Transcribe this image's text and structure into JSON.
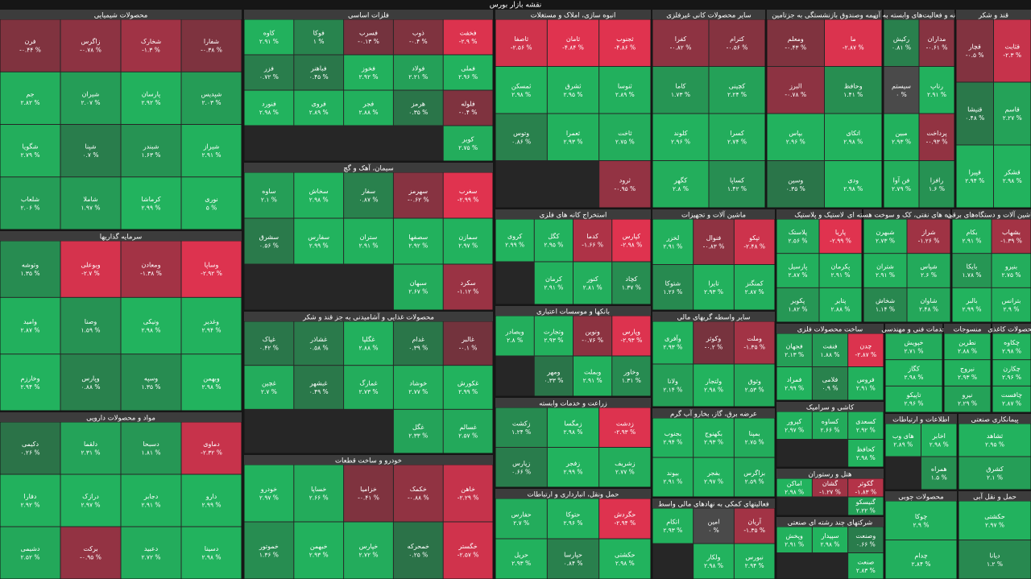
{
  "chart_data": {
    "type": "treemap",
    "title": "نقشه بازار بورس",
    "colors": {
      "up": "#22b35e",
      "down": "#e0334f",
      "flat": "#4a4a4a"
    },
    "sectors": [
      {
        "name": "محصولات شیمیایی",
        "names": [
          "شفارا",
          "شخارک",
          "زاگرس",
          "فرن",
          "شپدیس",
          "پارسان",
          "شیران",
          "جم",
          "شیراز",
          "شبندر",
          "شپنا",
          "شگویا",
          "نوری",
          "کرماشا",
          "شاملا",
          "شلعاب"
        ],
        "values": [
          -0.38,
          -1.3,
          -0.78,
          -0.44,
          2.03,
          2.92,
          2.07,
          2.82,
          2.91,
          1.63,
          0.7,
          2.79,
          5,
          2.99,
          1.97,
          2.06
        ],
        "value_labels": [
          "-۰.۳۸ %",
          "-۱.۳ %",
          "-۰.۷۸ %",
          "-۰.۴۴ %",
          "۲.۰۳ %",
          "۲.۹۲ %",
          "۲.۰۷ %",
          "۲.۸۲ %",
          "۲.۹۱ %",
          "۱.۶۳ %",
          "۰.۷ %",
          "۲.۷۹ %",
          "۵ %",
          "۲.۹۹ %",
          "۱.۹۷ %",
          "۲.۰۶ %"
        ]
      },
      {
        "name": "فلزات اساسی",
        "names": [
          "فخفت",
          "ذوب",
          "فسرب",
          "فوکا",
          "کاوه",
          "فملی",
          "فولاد",
          "فخوز",
          "فباهنر",
          "فزر",
          "فلوله",
          "هرمز",
          "فجر",
          "فروی",
          "فنورد",
          "کویر"
        ],
        "values": [
          -2.9,
          -0.4,
          -0.13,
          1,
          2.91,
          2.96,
          2.21,
          2.92,
          0.45,
          0.72,
          -0.4,
          0.35,
          2.88,
          2.89,
          2.98,
          2.75
        ],
        "value_labels": [
          "-۲.۹ %",
          "-۰.۴ %",
          "-۰.۱۳ %",
          "۱ %",
          "۲.۹۱ %",
          "۲.۹۶ %",
          "۲.۲۱ %",
          "۲.۹۲ %",
          "۰.۴۵ %",
          "۰.۷۲ %",
          "-۰.۴ %",
          "۰.۳۵ %",
          "۲.۸۸ %",
          "۲.۸۹ %",
          "۲.۹۸ %",
          "۲.۷۵ %"
        ]
      },
      {
        "name": "انبوه سازی، املاک و مستغلات",
        "names": [
          "ثجنوب",
          "ثامان",
          "ثاصفا",
          "ثنوسا",
          "ثشرق",
          "ثمسکن",
          "ثاخت",
          "ثعمرا",
          "وتوس",
          "ثرود"
        ],
        "values": [
          -4.86,
          -4.84,
          -2.56,
          2.89,
          2.95,
          2.98,
          2.75,
          2.93,
          0.86,
          -0.95
        ],
        "value_labels": [
          "-۴.۸۶ %",
          "-۴.۸۴ %",
          "-۲.۵۶ %",
          "۲.۸۹ %",
          "۲.۹۵ %",
          "۲.۹۸ %",
          "۲.۷۵ %",
          "۲.۹۳ %",
          "۰.۸۶ %",
          "-۰.۹۵ %"
        ]
      },
      {
        "name": "سایر محصولات کانی غیرفلزی",
        "names": [
          "کترام",
          "کفرا",
          "کچینی",
          "کاما",
          "کسرا",
          "کلوند",
          "کساپا",
          "کگهر"
        ],
        "values": [
          -0.56,
          -0.82,
          2.24,
          1.73,
          2.74,
          2.96,
          1.42,
          2.8
        ],
        "value_labels": [
          "-۰.۵۶ %",
          "-۰.۸۲ %",
          "۲.۲۴ %",
          "۱.۷۳ %",
          "۲.۷۴ %",
          "۲.۹۶ %",
          "۱.۴۲ %",
          "۲.۸ %"
        ]
      },
      {
        "name": "بیمه وصندوق بازنشستگی به جزتامین",
        "names": [
          "ما",
          "ومعلم",
          "وحافظ",
          "البرز",
          "اتکای",
          "بپاس",
          "ودی",
          "وسین"
        ],
        "values": [
          -2.87,
          -0.43,
          1.41,
          -0.78,
          2.98,
          2.96,
          2.98,
          0.35
        ],
        "value_labels": [
          "-۲.۸۷ %",
          "-۰.۴۳ %",
          "۱.۴۱ %",
          "-۰.۷۸ %",
          "۲.۹۸ %",
          "۲.۹۶ %",
          "۲.۹۸ %",
          "۰.۳۵ %"
        ]
      },
      {
        "name": "رایانه و فعالیت‌های وابسته به آن",
        "names": [
          "مداران",
          "رکیش",
          "رتاپ",
          "سیستم",
          "پرداخت",
          "مبین",
          "رافزا",
          "فن آوا"
        ],
        "values": [
          -0.61,
          0.81,
          2.91,
          0,
          -0.93,
          2.93,
          1.6,
          2.79
        ],
        "value_labels": [
          "-۰.۶۱ %",
          "۰.۸۱ %",
          "۲.۹۱ %",
          "۰ %",
          "-۰.۹۳ %",
          "۲.۹۳ %",
          "۱.۶ %",
          "۲.۷۹ %"
        ]
      },
      {
        "name": "قند و شکر",
        "names": [
          "قثابت",
          "قچار",
          "قاسم",
          "قنیشا",
          "قشکر",
          "قپیرا"
        ],
        "values": [
          -2.3,
          -0.5,
          2.27,
          0.48,
          2.98,
          2.94
        ],
        "value_labels": [
          "-۲.۳ %",
          "-۰.۵ %",
          "۲.۲۷ %",
          "۰.۴۸ %",
          "۲.۹۸ %",
          "۲.۹۴ %"
        ]
      },
      {
        "name": "سرمایه گذاریها",
        "names": [
          "وساپا",
          "ومعادن",
          "وبوعلی",
          "وتوشه",
          "وغدیر",
          "ونیکی",
          "وصنا",
          "وامید",
          "وبهمن",
          "وسپه",
          "وپارس",
          "وخارزم"
        ],
        "values": [
          -2.92,
          -1.38,
          -2.7,
          1.35,
          2.94,
          2.98,
          1.59,
          2.87,
          2.98,
          1.35,
          0.88,
          2.94
        ],
        "value_labels": [
          "-۲.۹۲ %",
          "-۱.۳۸ %",
          "-۲.۷ %",
          "۱.۳۵ %",
          "۲.۹۴ %",
          "۲.۹۸ %",
          "۱.۵۹ %",
          "۲.۸۷ %",
          "۲.۹۸ %",
          "۱.۳۵ %",
          "۰.۸۸ %",
          "۲.۹۴ %"
        ]
      },
      {
        "name": "سیمان، آهک و گچ",
        "names": [
          "سغرب",
          "سهرمز",
          "سفار",
          "سخاش",
          "ساوه",
          "سمازن",
          "سصفها",
          "ستران",
          "سفارس",
          "سشرق",
          "سکرد",
          "سبهان"
        ],
        "values": [
          -2.99,
          -0.62,
          0.87,
          2.98,
          2.1,
          2.97,
          2.92,
          2.91,
          2.99,
          0.56,
          -1.12,
          2.67
        ],
        "value_labels": [
          "-۲.۹۹ %",
          "-۰.۶۲ %",
          "۰.۸۷ %",
          "۲.۹۸ %",
          "۲.۱ %",
          "۲.۹۷ %",
          "۲.۹۲ %",
          "۲.۹۱ %",
          "۲.۹۹ %",
          "۰.۵۶ %",
          "-۱.۱۲ %",
          "۲.۶۷ %"
        ]
      },
      {
        "name": "محصولات غذایی و آشامیدنی به جز قند و شکر",
        "names": [
          "غالبر",
          "غدام",
          "غگلپا",
          "غشاذر",
          "غپاک",
          "غکورش",
          "خوشاد",
          "غمارگ",
          "غبشهر",
          "غچین",
          "غسالم",
          "غگل"
        ],
        "values": [
          -0.1,
          0.39,
          2.88,
          0.58,
          0.42,
          2.99,
          2.77,
          2.73,
          0.49,
          2.7,
          2.57,
          2.33
        ],
        "value_labels": [
          "-۰.۱ %",
          "۰.۳۹ %",
          "۲.۸۸ %",
          "۰.۵۸ %",
          "۰.۴۲ %",
          "۲.۹۹ %",
          "۲.۷۷ %",
          "۲.۷۳ %",
          "۰.۴۹ %",
          "۲.۷ %",
          "۲.۵۷ %",
          "۲.۳۳ %"
        ]
      },
      {
        "name": "خودرو و ساخت قطعات",
        "names": [
          "خاهن",
          "خکمک",
          "خزامیا",
          "خساپا",
          "خودرو",
          "خگستر",
          "خمحرکه",
          "خپارس",
          "خبهمن",
          "خموتور"
        ],
        "values": [
          -2.29,
          -0.88,
          -0.41,
          2.66,
          2.97,
          -2.57,
          0.25,
          2.72,
          2.93,
          1.36
        ],
        "value_labels": [
          "-۲.۲۹ %",
          "-۰.۸۸ %",
          "-۰.۴۱ %",
          "۲.۶۶ %",
          "۲.۹۷ %",
          "-۲.۵۷ %",
          "۰.۲۵ %",
          "۲.۷۲ %",
          "۲.۹۳ %",
          "۱.۳۶ %"
        ]
      },
      {
        "name": "مواد و محصولات دارویی",
        "names": [
          "دماوی",
          "دسبحا",
          "دلقما",
          "دکیمی",
          "دارو",
          "دجابر",
          "درازک",
          "دفارا",
          "دسینا",
          "دعبید",
          "برکت",
          "دشیمی"
        ],
        "values": [
          -2.32,
          1.81,
          2.31,
          0.26,
          2.99,
          2.91,
          2.97,
          2.92,
          2.98,
          2.72,
          -0.95,
          2.52
        ],
        "value_labels": [
          "-۲.۳۲ %",
          "۱.۸۱ %",
          "۲.۳۱ %",
          "۰.۲۶ %",
          "۲.۹۹ %",
          "۲.۹۱ %",
          "۲.۹۷ %",
          "۲.۹۲ %",
          "۲.۹۸ %",
          "۲.۷۲ %",
          "-۰.۹۵ %",
          "۲.۵۲ %"
        ]
      },
      {
        "name": "استخراج کانه های فلزی",
        "names": [
          "کپارس",
          "کدما",
          "کگل",
          "کروی",
          "کچاد",
          "کنور",
          "کرمان"
        ],
        "values": [
          -2.98,
          -1.66,
          2.95,
          2.99,
          1.37,
          2.81,
          2.91
        ],
        "value_labels": [
          "-۲.۹۸ %",
          "-۱.۶۶ %",
          "۲.۹۵ %",
          "۲.۹۹ %",
          "۱.۳۷ %",
          "۲.۸۱ %",
          "۲.۹۱ %"
        ]
      },
      {
        "name": "بانکها و موسسات اعتباری",
        "names": [
          "وپارس",
          "ونوین",
          "وتجارت",
          "وبصادر",
          "وخاور",
          "وبملت",
          "ومهر"
        ],
        "values": [
          -2.93,
          -0.76,
          2.93,
          2.8,
          1.31,
          2.91,
          0.33
        ],
        "value_labels": [
          "-۲.۹۳ %",
          "-۰.۷۶ %",
          "۲.۹۳ %",
          "۲.۸ %",
          "۱.۳۱ %",
          "۲.۹۱ %",
          "۰.۳۳ %"
        ]
      },
      {
        "name": "زراعت و خدمات وابسته",
        "names": [
          "زدشت",
          "زمگسا",
          "زکشت",
          "زشریف",
          "زفجر",
          "زپارس"
        ],
        "values": [
          -2.93,
          2.98,
          1.24,
          2.77,
          2.99,
          0.66
        ],
        "value_labels": [
          "-۲.۹۳ %",
          "۲.۹۸ %",
          "۱.۲۴ %",
          "۲.۷۷ %",
          "۲.۹۹ %",
          "۰.۶۶ %"
        ]
      },
      {
        "name": "حمل ونقل، انبارداری و ارتباطات",
        "names": [
          "حگردش",
          "حتوکا",
          "حفارس",
          "حکشتی",
          "حپارسا",
          "حریل"
        ],
        "values": [
          -2.94,
          2.96,
          2.7,
          2.98,
          0.84,
          2.93
        ],
        "value_labels": [
          "-۲.۹۴ %",
          "۲.۹۶ %",
          "۲.۷ %",
          "۲.۹۸ %",
          "۰.۸۴ %",
          "۲.۹۳ %"
        ]
      },
      {
        "name": "ماشین آلات و تجهیزات",
        "names": [
          "تپکو",
          "فنوال",
          "لخزر",
          "کمنگنز",
          "تایرا",
          "شتوکا"
        ],
        "values": [
          -2.48,
          -0.83,
          2.91,
          2.87,
          2.93,
          1.26
        ],
        "value_labels": [
          "-۲.۴۸ %",
          "-۰.۸۳ %",
          "۲.۹۱ %",
          "۲.۸۷ %",
          "۲.۹۳ %",
          "۱.۲۶ %"
        ]
      },
      {
        "name": "سایر واسطه گریهای مالی",
        "names": [
          "وملت",
          "وکوثر",
          "وآفری",
          "وثوق",
          "ولتجار",
          "ولانا"
        ],
        "values": [
          -1.35,
          -0.2,
          2.93,
          2.53,
          2.98,
          2.14
        ],
        "value_labels": [
          "-۱.۳۵ %",
          "-۰.۲ %",
          "۲.۹۳ %",
          "۲.۵۳ %",
          "۲.۹۸ %",
          "۲.۱۴ %"
        ]
      },
      {
        "name": "عرضه برق، گاز، بخارو آب گرم",
        "names": [
          "بمپنا",
          "بکهنوج",
          "بجنوب",
          "بزاگرس",
          "بفجر",
          "بیوند"
        ],
        "values": [
          2.75,
          2.93,
          2.94,
          2.59,
          2.97,
          2.91
        ],
        "value_labels": [
          "۲.۷۵ %",
          "۲.۹۳ %",
          "۲.۹۴ %",
          "۲.۵۹ %",
          "۲.۹۷ %",
          "۲.۹۱ %"
        ]
      },
      {
        "name": "فعالیتهای کمکی به نهادهای مالی واسط",
        "names": [
          "آریان",
          "امین",
          "اتکام",
          "نبورس",
          "ولکار"
        ],
        "values": [
          -1.35,
          0,
          2.93,
          2.94,
          2.98
        ],
        "value_labels": [
          "-۱.۳۵ %",
          "۰ %",
          "۲.۹۳ %",
          "۲.۹۴ %",
          "۲.۹۸ %"
        ]
      },
      {
        "name": "لاستیک و پلاستیک",
        "names": [
          "پاریا",
          "پلاستک",
          "پکرمان",
          "پارسیل",
          "پتایر",
          "پکویر"
        ],
        "values": [
          -2.99,
          2.56,
          2.91,
          2.87,
          2.88,
          1.82
        ],
        "value_labels": [
          "-۲.۹۹ %",
          "۲.۵۶ %",
          "۲.۹۱ %",
          "۲.۸۷ %",
          "۲.۸۸ %",
          "۱.۸۲ %"
        ]
      },
      {
        "name": "فراورده های نفتی، کک و سوخت هسته ای",
        "names": [
          "شراز",
          "شبهرن",
          "شپاس",
          "شتران",
          "شاوان",
          "شخاش"
        ],
        "values": [
          -1.26,
          2.73,
          2.6,
          2.91,
          2.48,
          1.14
        ],
        "value_labels": [
          "-۱.۲۶ %",
          "۲.۷۳ %",
          "۲.۶ %",
          "۲.۹۱ %",
          "۲.۴۸ %",
          "۱.۱۴ %"
        ]
      },
      {
        "name": "ماشین آلات و دستگاه‌های برقی",
        "names": [
          "بشهاب",
          "بکام",
          "بنیرو",
          "بایکا",
          "بترانس",
          "بالبر"
        ],
        "values": [
          -1.39,
          2.91,
          2.75,
          1.78,
          2.9,
          2.99
        ],
        "value_labels": [
          "-۱.۳۹ %",
          "۲.۹۱ %",
          "۲.۷۵ %",
          "۱.۷۸ %",
          "۲.۹ %",
          "۲.۹۹ %"
        ]
      },
      {
        "name": "ساخت محصولات فلزی",
        "names": [
          "چدن",
          "فنفت",
          "فجهان",
          "فروس",
          "فلامی",
          "فمراد"
        ],
        "values": [
          -2.87,
          1.88,
          2.13,
          2.91,
          0.9,
          2.99
        ],
        "value_labels": [
          "-۲.۸۷ %",
          "۱.۸۸ %",
          "۲.۱۳ %",
          "۲.۹۱ %",
          "۰.۹ %",
          "۲.۹۹ %"
        ]
      },
      {
        "name": "کاشی و سرامیک",
        "names": [
          "کسعدی",
          "کساوه",
          "کپرور",
          "کحافظ"
        ],
        "values": [
          2.92,
          2.66,
          2.97,
          2.98
        ],
        "value_labels": [
          "۲.۹۲ %",
          "۲.۶۶ %",
          "۲.۹۷ %",
          "۲.۹۸ %"
        ]
      },
      {
        "name": "هتل و رستوران",
        "names": [
          "گکوثر",
          "گشان",
          "اماکن",
          "گنیسکو"
        ],
        "values": [
          -1.83,
          -1.27,
          2.98,
          2.22
        ],
        "value_labels": [
          "-۱.۸۳ %",
          "-۱.۲۷ %",
          "۲.۹۸ %",
          "۲.۲۲ %"
        ]
      },
      {
        "name": "شرکتهای چند رشته ای صنعتی",
        "names": [
          "وصنعت",
          "سپیدار",
          "وپخش",
          "صنعت"
        ],
        "values": [
          0.66,
          2.98,
          2.91,
          2.83
        ],
        "value_labels": [
          "۰.۶۶ %",
          "۲.۹۸ %",
          "۲.۹۱ %",
          "۲.۸۳ %"
        ]
      },
      {
        "name": "خدمات فنی و مهندسی",
        "names": [
          "خپویش",
          "کگاز",
          "تاپیکو"
        ],
        "values": [
          2.71,
          2.98,
          2.96
        ],
        "value_labels": [
          "۲.۷۱ %",
          "۲.۹۸ %",
          "۲.۹۶ %"
        ]
      },
      {
        "name": "منسوجات",
        "names": [
          "نطرین",
          "نبروج",
          "نیرو"
        ],
        "values": [
          2.88,
          2.93,
          2.29
        ],
        "value_labels": [
          "۲.۸۸ %",
          "۲.۹۳ %",
          "۲.۲۹ %"
        ]
      },
      {
        "name": "محصولات کاغذی",
        "names": [
          "چکاوه",
          "چکارن",
          "چافست"
        ],
        "values": [
          2.98,
          2.96,
          2.87
        ],
        "value_labels": [
          "۲.۹۸ %",
          "۲.۹۶ %",
          "۲.۸۷ %"
        ]
      },
      {
        "name": "اطلاعات و ارتباطات",
        "names": [
          "اخابر",
          "های وب",
          "همراه"
        ],
        "values": [
          2.98,
          2.89,
          1.5
        ],
        "value_labels": [
          "۲.۹۸ %",
          "۲.۸۹ %",
          "۱.۵ %"
        ]
      },
      {
        "name": "پیمانکاری صنعتی",
        "names": [
          "ثشاهد",
          "کشرق"
        ],
        "values": [
          2.95,
          2.1
        ],
        "value_labels": [
          "۲.۹۵ %",
          "۲.۱ %"
        ]
      },
      {
        "name": "محصولات چوبی",
        "names": [
          "چوکا",
          "چدام"
        ],
        "values": [
          2.9,
          2.84
        ],
        "value_labels": [
          "۲.۹ %",
          "۲.۸۴ %"
        ]
      },
      {
        "name": "حمل و نقل آبی",
        "names": [
          "حکشتی",
          "دیانا"
        ],
        "values": [
          2.97,
          1.2
        ],
        "value_labels": [
          "۲.۹۷ %",
          "۱.۲ %"
        ]
      }
    ]
  }
}
